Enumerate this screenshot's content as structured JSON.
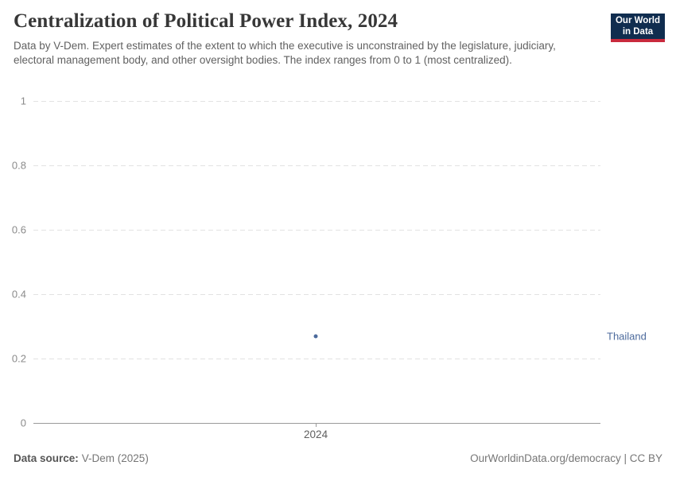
{
  "header": {
    "title": "Centralization of Political Power Index, 2024",
    "subtitle": "Data by V-Dem. Expert estimates of the extent to which the executive is unconstrained by the legislature, judiciary, electoral management body, and other oversight bodies. The index ranges from 0 to 1 (most centralized).",
    "logo_line1": "Our World",
    "logo_line2": "in Data"
  },
  "chart_data": {
    "type": "scatter",
    "title": "Centralization of Political Power Index, 2024",
    "x": [
      2024
    ],
    "x_tick_labels": [
      "2024"
    ],
    "series": [
      {
        "name": "Thailand",
        "values": [
          0.27
        ],
        "color": "#4c6a9c"
      }
    ],
    "xlabel": "",
    "ylabel": "",
    "ylim": [
      0,
      1
    ],
    "y_ticks": [
      0,
      0.2,
      0.4,
      0.6,
      0.8,
      1
    ],
    "grid": "horizontal-dashed",
    "legend": "entity-label-right"
  },
  "footer": {
    "source_label": "Data source:",
    "source_value": "V-Dem (2025)",
    "credit": "OurWorldinData.org/democracy | CC BY"
  },
  "colors": {
    "accent_series": "#4c6a9c",
    "logo_bg": "#102d4f",
    "logo_stripe": "#c92a3d",
    "gridline": "#e2e2e2",
    "axis": "#9a9a9a"
  }
}
